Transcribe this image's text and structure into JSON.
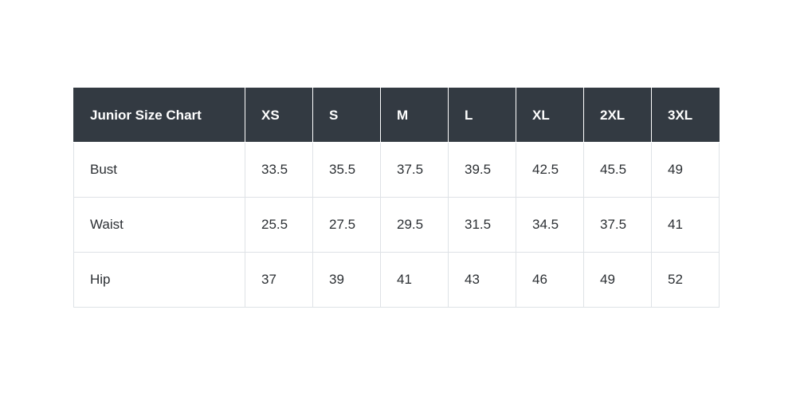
{
  "chart_data": {
    "type": "table",
    "title": "Junior Size Chart",
    "columns": [
      "Junior Size Chart",
      "XS",
      "S",
      "M",
      "L",
      "XL",
      "2XL",
      "3XL"
    ],
    "rows": [
      {
        "label": "Bust",
        "values": [
          "33.5",
          "35.5",
          "37.5",
          "39.5",
          "42.5",
          "45.5",
          "49"
        ]
      },
      {
        "label": "Waist",
        "values": [
          "25.5",
          "27.5",
          "29.5",
          "31.5",
          "34.5",
          "37.5",
          "41"
        ]
      },
      {
        "label": "Hip",
        "values": [
          "37",
          "39",
          "41",
          "43",
          "46",
          "49",
          "52"
        ]
      }
    ],
    "layout": {
      "header_bg": "#333a42",
      "header_text_color": "#ffffff",
      "body_text_color": "#2b2f33",
      "border_color": "#dee2e6",
      "page_bg": "#ffffff"
    }
  }
}
